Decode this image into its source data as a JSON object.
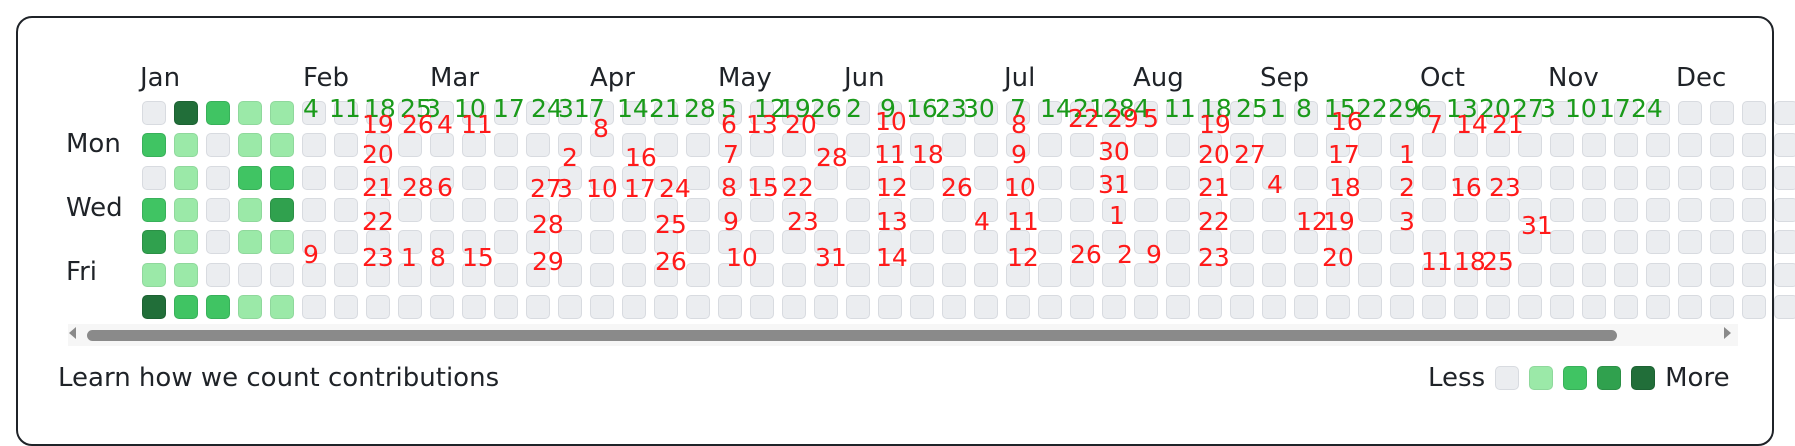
{
  "months": [
    "Jan",
    "Feb",
    "Mar",
    "Apr",
    "May",
    "Jun",
    "Jul",
    "Aug",
    "Sep",
    "Oct",
    "Nov",
    "Dec"
  ],
  "day_labels": [
    "Mon",
    "Wed",
    "Fri"
  ],
  "footer": {
    "learn_link": "Learn how we count contributions"
  },
  "legend": {
    "less": "Less",
    "more": "More"
  },
  "colors": {
    "level_0": "#ebedf0",
    "level_1": "#9be9a8",
    "level_2": "#40c463",
    "level_3": "#30a14e",
    "level_4": "#216e39",
    "sunday_numbers": "#1a9a1a",
    "weekday_numbers": "#ff1a1a"
  },
  "contribution_levels": {
    "week_0": [
      0,
      2,
      0,
      2,
      3,
      1,
      4
    ],
    "week_1": [
      4,
      1,
      1,
      1,
      1,
      1,
      2
    ],
    "week_2": [
      2,
      0,
      0,
      0,
      0,
      0,
      2
    ],
    "week_3": [
      1,
      1,
      2,
      1,
      1,
      0,
      1
    ],
    "week_4": [
      1,
      1,
      2,
      3,
      1,
      0,
      1
    ]
  },
  "sunday_numbers": [
    "4",
    "11",
    "18",
    "25",
    "3",
    "10",
    "17",
    "24",
    "31",
    "7",
    "14",
    "21",
    "28",
    "5",
    "12",
    "19",
    "26",
    "2",
    "9",
    "16",
    "23",
    "30",
    "7",
    "14",
    "21",
    "28",
    "4",
    "11",
    "18",
    "25",
    "1",
    "8",
    "15",
    "22",
    "29",
    "6",
    "13",
    "20",
    "27",
    "3",
    "10",
    "17",
    "24"
  ],
  "weekday_numbers": [
    "19",
    "26",
    "4",
    "11",
    "8",
    "6",
    "13",
    "20",
    "10",
    "8",
    "22",
    "29",
    "5",
    "19",
    "16",
    "7",
    "14",
    "21",
    "20",
    "2",
    "16",
    "7",
    "28",
    "11",
    "18",
    "9",
    "30",
    "20",
    "27",
    "17",
    "1",
    "21",
    "28",
    "6",
    "27",
    "3",
    "10",
    "17",
    "24",
    "8",
    "15",
    "22",
    "12",
    "26",
    "10",
    "31",
    "21",
    "4",
    "18",
    "2",
    "16",
    "23",
    "22",
    "28",
    "25",
    "9",
    "23",
    "13",
    "4",
    "11",
    "1",
    "22",
    "12",
    "19",
    "3",
    "31",
    "9",
    "23",
    "1",
    "8",
    "15",
    "29",
    "26",
    "10",
    "31",
    "14",
    "12",
    "26",
    "2",
    "9",
    "23",
    "20",
    "11",
    "18",
    "25"
  ]
}
